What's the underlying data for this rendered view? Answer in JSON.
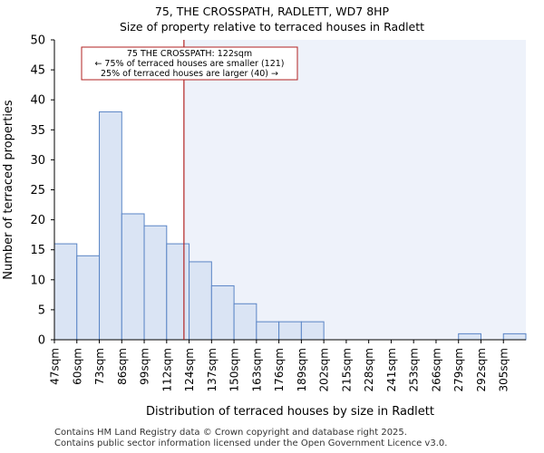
{
  "chart_data": {
    "type": "bar",
    "title": "75, THE CROSSPATH, RADLETT, WD7 8HP",
    "subtitle": "Size of property relative to terraced houses in Radlett",
    "xlabel": "Distribution of terraced houses by size in Radlett",
    "ylabel": "Number of terraced properties",
    "categories": [
      "47sqm",
      "60sqm",
      "73sqm",
      "86sqm",
      "99sqm",
      "112sqm",
      "124sqm",
      "137sqm",
      "150sqm",
      "163sqm",
      "176sqm",
      "189sqm",
      "202sqm",
      "215sqm",
      "228sqm",
      "241sqm",
      "253sqm",
      "266sqm",
      "279sqm",
      "292sqm",
      "305sqm"
    ],
    "values": [
      16,
      14,
      38,
      21,
      19,
      16,
      13,
      9,
      6,
      3,
      3,
      3,
      0,
      0,
      0,
      0,
      0,
      0,
      1,
      0,
      1
    ],
    "ylim": [
      0,
      50
    ],
    "yticks": [
      0,
      5,
      10,
      15,
      20,
      25,
      30,
      35,
      40,
      45,
      50
    ],
    "marker": {
      "value_sqm": 122,
      "position_bins": 5.77
    },
    "annotation": {
      "line1": "75 THE CROSSPATH: 122sqm",
      "line2": "← 75% of terraced houses are smaller (121)",
      "line3": "25% of terraced houses are larger (40) →"
    },
    "colors": {
      "bar_fill": "#dae4f4",
      "bar_edge": "#5a85c6",
      "marker": "#b22222",
      "highlight_bg": "#eef2fa"
    }
  },
  "footer": {
    "line1": "Contains HM Land Registry data © Crown copyright and database right 2025.",
    "line2": "Contains public sector information licensed under the Open Government Licence v3.0."
  }
}
